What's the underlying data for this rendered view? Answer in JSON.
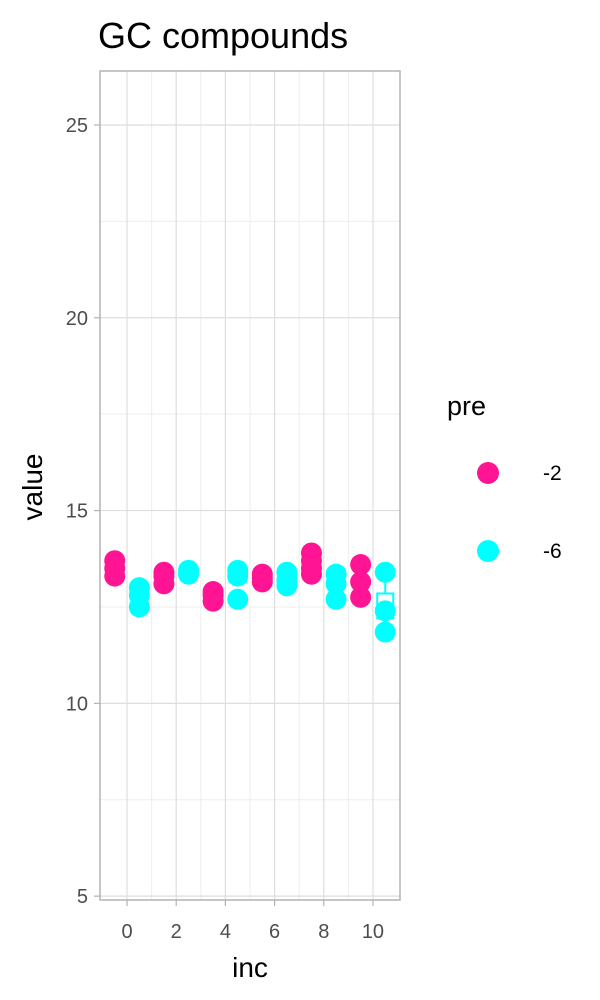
{
  "chart_data": {
    "type": "scatter",
    "title": "GC compounds",
    "xlabel": "inc",
    "ylabel": "value",
    "xlim": [
      -1.1,
      11.1
    ],
    "ylim": [
      4.9,
      26.4
    ],
    "x_ticks": [
      0,
      2,
      4,
      6,
      8,
      10
    ],
    "x_tick_labels": [
      "0",
      "2",
      "4",
      "6",
      "8",
      "10"
    ],
    "y_ticks": [
      5,
      10,
      15,
      20,
      25
    ],
    "y_tick_labels": [
      "5",
      "10",
      "15",
      "20",
      "25"
    ],
    "grid": true,
    "legend": {
      "title": "pre",
      "position": "right",
      "entries": [
        {
          "label": "-2",
          "color": "#ff1493"
        },
        {
          "label": "-6",
          "color": "#00ffff"
        }
      ]
    },
    "series": [
      {
        "pre": "-2",
        "color": "#ff1493",
        "points": [
          {
            "x": -0.5,
            "y": 13.7
          },
          {
            "x": -0.5,
            "y": 13.5
          },
          {
            "x": -0.5,
            "y": 13.3
          },
          {
            "x": 1.5,
            "y": 13.4
          },
          {
            "x": 1.5,
            "y": 13.3
          },
          {
            "x": 1.5,
            "y": 13.1
          },
          {
            "x": 3.5,
            "y": 12.9
          },
          {
            "x": 3.5,
            "y": 12.8
          },
          {
            "x": 3.5,
            "y": 12.65
          },
          {
            "x": 5.5,
            "y": 13.35
          },
          {
            "x": 5.5,
            "y": 13.25
          },
          {
            "x": 5.5,
            "y": 13.15
          },
          {
            "x": 7.5,
            "y": 13.9
          },
          {
            "x": 7.5,
            "y": 13.7
          },
          {
            "x": 7.5,
            "y": 13.5
          },
          {
            "x": 7.5,
            "y": 13.35
          },
          {
            "x": 9.5,
            "y": 13.6
          },
          {
            "x": 9.5,
            "y": 13.15
          },
          {
            "x": 9.5,
            "y": 12.75
          }
        ]
      },
      {
        "pre": "-6",
        "color": "#00ffff",
        "points": [
          {
            "x": 0.5,
            "y": 13.0
          },
          {
            "x": 0.5,
            "y": 12.8
          },
          {
            "x": 0.5,
            "y": 12.5
          },
          {
            "x": 2.5,
            "y": 13.45
          },
          {
            "x": 2.5,
            "y": 13.35
          },
          {
            "x": 4.5,
            "y": 13.45
          },
          {
            "x": 4.5,
            "y": 13.3
          },
          {
            "x": 4.5,
            "y": 12.7
          },
          {
            "x": 6.5,
            "y": 13.4
          },
          {
            "x": 6.5,
            "y": 13.2
          },
          {
            "x": 6.5,
            "y": 13.05
          },
          {
            "x": 8.5,
            "y": 13.35
          },
          {
            "x": 8.5,
            "y": 13.1
          },
          {
            "x": 8.5,
            "y": 12.7
          },
          {
            "x": 10.5,
            "y": 13.4
          },
          {
            "x": 10.5,
            "y": 12.4
          },
          {
            "x": 10.5,
            "y": 11.85
          }
        ]
      }
    ],
    "boxes": [
      {
        "x": 4.5,
        "q1": 13.15,
        "median": 13.3,
        "q3": 13.4,
        "lower": 13.1,
        "upper": 13.45,
        "color": "#00ffff"
      },
      {
        "x": 10.5,
        "q1": 12.2,
        "median": 12.45,
        "q3": 12.85,
        "lower": 11.85,
        "upper": 13.4,
        "color": "#00ffff"
      }
    ]
  }
}
